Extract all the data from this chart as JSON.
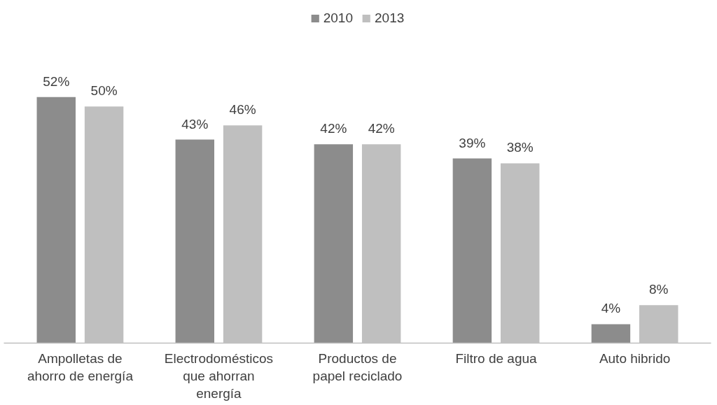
{
  "chart_data": {
    "type": "bar",
    "categories": [
      "Ampolletas de ahorro de energía",
      "Electrodomésticos que ahorran energía",
      "Productos de papel reciclado",
      "Filtro de agua",
      "Auto hibrido"
    ],
    "series": [
      {
        "name": "2010",
        "color": "#8c8c8c",
        "values": [
          52,
          43,
          42,
          39,
          4
        ],
        "value_labels": [
          "52%",
          "43%",
          "42%",
          "39%",
          "4%"
        ]
      },
      {
        "name": "2013",
        "color": "#bfbfbf",
        "values": [
          50,
          46,
          42,
          38,
          8
        ],
        "value_labels": [
          "50%",
          "46%",
          "42%",
          "38%",
          "8%"
        ]
      }
    ],
    "grid": false,
    "legend": "top",
    "tick_labels": "x"
  }
}
